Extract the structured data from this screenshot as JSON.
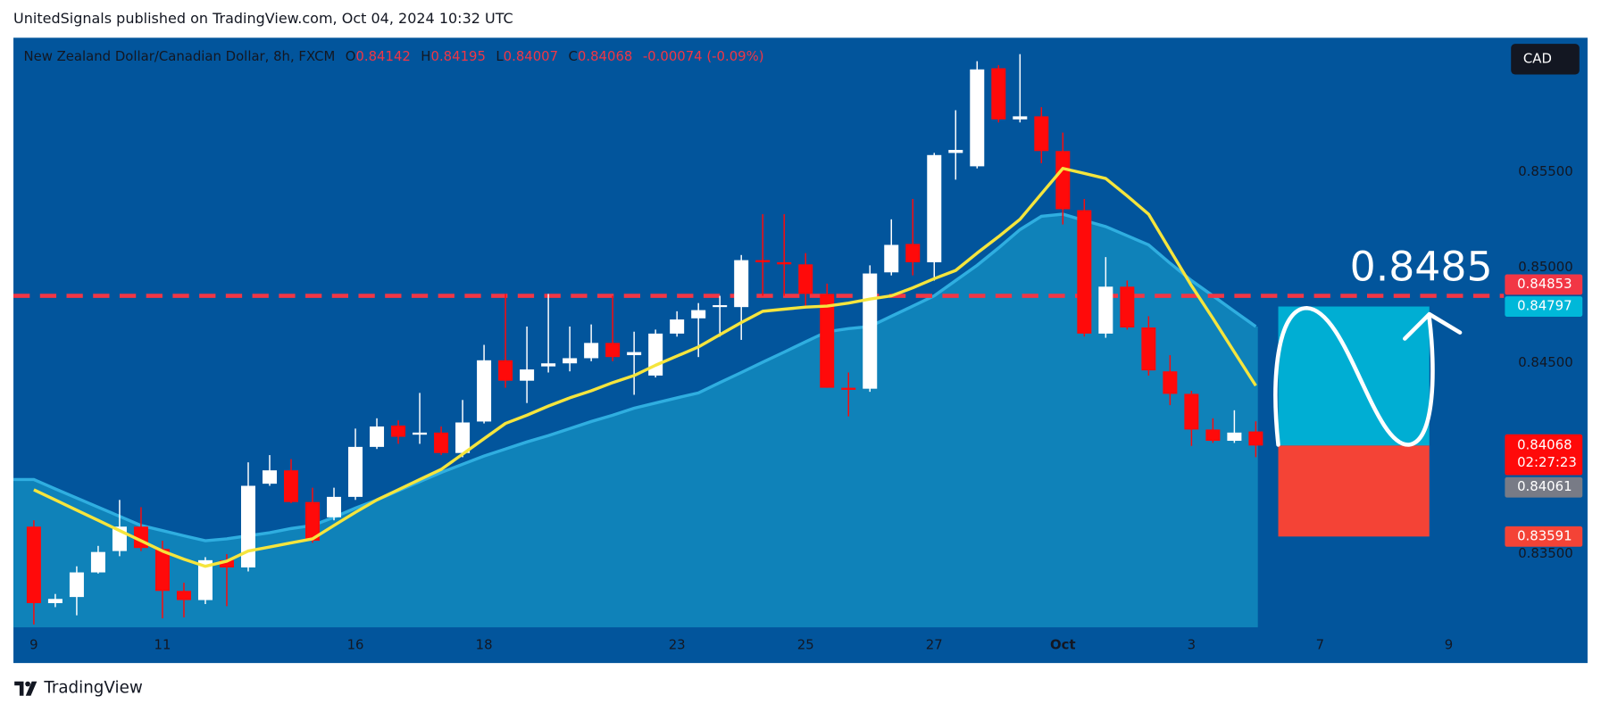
{
  "header": "UnitedSignals published on TradingView.com, Oct 04, 2024 10:32 UTC",
  "footer": "TradingView",
  "chart_data": {
    "type": "candlestick",
    "title": "New Zealand Dollar/Canadian Dollar, 8h, FXCM",
    "legend_keys": [
      "O",
      "H",
      "L",
      "C"
    ],
    "change": "-0.00074 (-0.09%)",
    "currency": "CAD",
    "countdown": "02:27:23",
    "categories": [
      "9",
      null,
      null,
      null,
      null,
      null,
      "11",
      null,
      null,
      null,
      null,
      null,
      null,
      null,
      null,
      "16",
      null,
      null,
      null,
      null,
      null,
      "18",
      null,
      null,
      null,
      null,
      null,
      null,
      null,
      null,
      "23",
      null,
      null,
      null,
      null,
      null,
      "25",
      null,
      null,
      null,
      null,
      null,
      "27",
      null,
      null,
      null,
      null,
      null,
      "Oct",
      null,
      null,
      null,
      null,
      null,
      "3",
      null,
      null,
      null,
      null,
      null,
      "7",
      null,
      null,
      null,
      null,
      null,
      "9",
      null,
      null
    ],
    "open": [
      0.83643,
      0.83242,
      0.83274,
      0.83403,
      0.83515,
      0.83643,
      0.83526,
      0.83306,
      0.83258,
      0.83467,
      0.83429,
      0.83868,
      0.83938,
      0.83772,
      0.83692,
      0.83799,
      0.84061,
      0.84173,
      0.84125,
      0.84136,
      0.84029,
      0.84194,
      0.84515,
      0.84408,
      0.84483,
      0.84499,
      0.84526,
      0.84606,
      0.84542,
      0.84435,
      0.84655,
      0.84735,
      0.84794,
      0.84794,
      0.8504,
      0.85029,
      0.85018,
      0.84863,
      0.84371,
      0.84366,
      0.84976,
      0.85125,
      0.85029,
      0.85602,
      0.85532,
      0.86046,
      0.85778,
      0.85794,
      0.85612,
      0.85302,
      0.84655,
      0.84901,
      0.84687,
      0.84457,
      0.84339,
      0.84152,
      0.84093,
      0.84142,
      null,
      null,
      null,
      null,
      null,
      null,
      null,
      null,
      null,
      null,
      null
    ],
    "high": [
      0.83676,
      0.8329,
      0.83435,
      0.83542,
      0.83783,
      0.83745,
      0.83569,
      0.83349,
      0.83483,
      0.83499,
      0.8398,
      0.84018,
      0.83997,
      0.83847,
      0.83847,
      0.84157,
      0.84211,
      0.842,
      0.84344,
      0.84168,
      0.84307,
      0.84596,
      0.84863,
      0.84692,
      0.84863,
      0.84692,
      0.84703,
      0.84853,
      0.84665,
      0.84676,
      0.84772,
      0.84815,
      0.84853,
      0.85067,
      0.85281,
      0.85281,
      0.85077,
      0.84917,
      0.84451,
      0.85013,
      0.85254,
      0.85361,
      0.85602,
      0.85826,
      0.86083,
      0.86062,
      0.8612,
      0.85842,
      0.85709,
      0.85361,
      0.85056,
      0.84933,
      0.84746,
      0.84542,
      0.84355,
      0.84211,
      0.84253,
      0.84195,
      null,
      null,
      null,
      null,
      null,
      null,
      null,
      null,
      null,
      null,
      null
    ],
    "low": [
      0.8313,
      0.83221,
      0.83178,
      0.83397,
      0.83488,
      0.83515,
      0.83162,
      0.83167,
      0.83237,
      0.83226,
      0.83408,
      0.83857,
      0.83766,
      0.83558,
      0.83676,
      0.83783,
      0.8405,
      0.84077,
      0.84077,
      0.84018,
      0.84007,
      0.84184,
      0.84371,
      0.84291,
      0.84451,
      0.84457,
      0.8451,
      0.8451,
      0.84334,
      0.84425,
      0.84639,
      0.84532,
      0.84639,
      0.84622,
      0.84853,
      0.84853,
      0.84799,
      0.84371,
      0.84221,
      0.8435,
      0.8496,
      0.8496,
      0.84933,
      0.85462,
      0.85521,
      0.85762,
      0.85762,
      0.85548,
      0.85227,
      0.84639,
      0.84633,
      0.84676,
      0.84435,
      0.8428,
      0.84066,
      0.84082,
      0.84082,
      0.84007,
      null,
      null,
      null,
      null,
      null,
      null,
      null,
      null,
      null,
      null,
      null
    ],
    "close": [
      0.83242,
      0.83264,
      0.83403,
      0.8351,
      0.83643,
      0.83531,
      0.83306,
      0.83258,
      0.83467,
      0.83429,
      0.83857,
      0.83938,
      0.83772,
      0.83569,
      0.83799,
      0.84061,
      0.84168,
      0.84114,
      0.84136,
      0.84029,
      0.84189,
      0.84515,
      0.84408,
      0.84467,
      0.84499,
      0.84526,
      0.84606,
      0.84532,
      0.84558,
      0.84655,
      0.84729,
      0.84778,
      0.84804,
      0.8504,
      0.85029,
      0.85018,
      0.84863,
      0.84371,
      0.8436,
      0.8497,
      0.8512,
      0.85029,
      0.85591,
      0.85618,
      0.8604,
      0.85778,
      0.85794,
      0.85612,
      0.85307,
      0.84655,
      0.84901,
      0.84687,
      0.84462,
      0.84339,
      0.84152,
      0.84093,
      0.84136,
      0.84068,
      null,
      null,
      null,
      null,
      null,
      null,
      null,
      null,
      null,
      null,
      null
    ],
    "up_color": "#ffffff",
    "down_color": "#ff0a0a",
    "band": {
      "color": "#0f82b9",
      "line_color": "#2faee0",
      "values": [
        0.8389,
        0.83841,
        0.83793,
        0.83745,
        0.83697,
        0.83649,
        0.83622,
        0.83595,
        0.83569,
        0.83579,
        0.83595,
        0.83611,
        0.83633,
        0.83649,
        0.83692,
        0.8374,
        0.83783,
        0.83831,
        0.83879,
        0.83927,
        0.8397,
        0.84013,
        0.8405,
        0.84087,
        0.8412,
        0.84157,
        0.84194,
        0.84227,
        0.84264,
        0.84291,
        0.84318,
        0.84344,
        0.84398,
        0.84451,
        0.84505,
        0.84558,
        0.84612,
        0.84665,
        0.84681,
        0.84692,
        0.84746,
        0.84799,
        0.84853,
        0.84933,
        0.85013,
        0.85104,
        0.852,
        0.8527,
        0.85281,
        0.85248,
        0.85216,
        0.85168,
        0.8512,
        0.85024,
        0.84933,
        0.84853,
        0.84772,
        0.84692,
        null,
        null,
        null,
        null,
        null,
        null,
        null,
        null,
        null,
        null,
        null
      ]
    },
    "lines": [
      {
        "color": "#f5e53d",
        "values": [
          0.83836,
          0.83783,
          0.83729,
          0.83676,
          0.83622,
          0.83569,
          0.83515,
          0.83472,
          0.83435,
          0.83462,
          0.83515,
          0.83536,
          0.83558,
          0.83579,
          0.83649,
          0.83718,
          0.83783,
          0.83836,
          0.8389,
          0.83943,
          0.84023,
          0.84104,
          0.84184,
          0.84227,
          0.84275,
          0.84318,
          0.84355,
          0.84398,
          0.84435,
          0.84489,
          0.84537,
          0.84585,
          0.84649,
          0.84713,
          0.84772,
          0.84783,
          0.84794,
          0.84799,
          0.84815,
          0.84836,
          0.84853,
          0.84895,
          0.84943,
          0.84986,
          0.85077,
          0.85163,
          0.85254,
          0.85388,
          0.85521,
          0.85495,
          0.85468,
          0.85377,
          0.85281,
          0.85093,
          0.84906,
          0.84735,
          0.84558,
          0.84382,
          null,
          null,
          null,
          null,
          null,
          null,
          null,
          null,
          null,
          null,
          null
        ]
      }
    ],
    "level": {
      "value": 0.84853,
      "color": "#f23645",
      "annotation": "0.8485"
    },
    "position": {
      "entry": 0.84068,
      "target": 0.84797,
      "stop": 0.83591,
      "target_color": "#00b8d9",
      "stop_color": "#f44336"
    },
    "second_price": 0.84061,
    "ylim": [
      0.83115,
      0.86206
    ],
    "yticks": [
      {
        "value": 0.835,
        "label": "0.83500"
      },
      {
        "value": 0.845,
        "label": "0.84500"
      },
      {
        "value": 0.85,
        "label": "0.85000"
      },
      {
        "value": 0.855,
        "label": "0.85500"
      }
    ],
    "grid": false
  }
}
